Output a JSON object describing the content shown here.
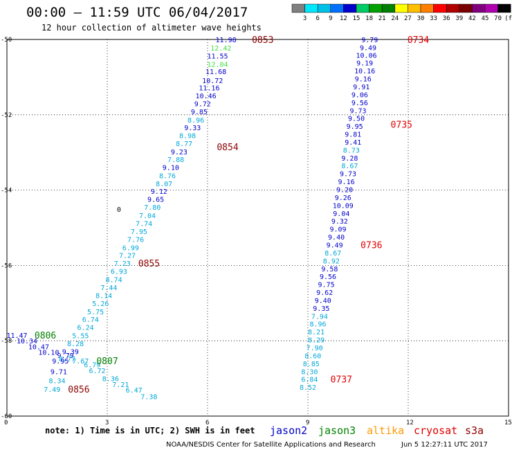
{
  "chart_data": {
    "type": "scatter",
    "title": "00:00 – 11:59 UTC 06/04/2017",
    "subtitle": "12 hour collection of altimeter wave heights",
    "xlim": [
      0,
      15
    ],
    "ylim": [
      -60,
      -50
    ],
    "x_ticks": [
      "0",
      "3",
      "6",
      "9",
      "12",
      "15"
    ],
    "y_ticks": [
      "-50",
      "-52",
      "-54",
      "-56",
      "-58",
      "-60"
    ],
    "grid": true,
    "colorbar": {
      "labels": [
        "3",
        "6",
        "9",
        "12",
        "15",
        "18",
        "21",
        "24",
        "27",
        "30",
        "33",
        "36",
        "39",
        "42",
        "45",
        "70"
      ],
      "unit": "(ft)",
      "colors": [
        "#808080",
        "#00e8ff",
        "#00c0e8",
        "#0070ff",
        "#0000cc",
        "#00cc66",
        "#00a000",
        "#008000",
        "#ffff00",
        "#ffc000",
        "#ff8000",
        "#ff0000",
        "#b00000",
        "#7a0000",
        "#800080",
        "#b000b0",
        "#000000"
      ]
    },
    "value_colors": {
      "ge9": "#0000cc",
      "lt9": "#00a8d8",
      "ge12": "#44dd44",
      "special": "#0000cc"
    },
    "series": [
      {
        "points": [
          {
            "x": 6.55,
            "y": -50.0,
            "v": "11.98",
            "c": "#0000cc"
          },
          {
            "x": 6.4,
            "y": -50.22,
            "v": "12.42",
            "c": "#44dd44"
          },
          {
            "x": 6.3,
            "y": -50.43,
            "v": "11.55",
            "c": "#0000cc"
          },
          {
            "x": 6.3,
            "y": -50.65,
            "v": "12.04",
            "c": "#44dd44"
          },
          {
            "x": 6.25,
            "y": -50.85,
            "v": "11.68",
            "c": "#0000cc"
          },
          {
            "x": 6.15,
            "y": -51.08,
            "v": "10.72",
            "c": "#0000cc"
          },
          {
            "x": 6.05,
            "y": -51.28,
            "v": "11.16",
            "c": "#0000cc"
          },
          {
            "x": 5.95,
            "y": -51.49,
            "v": "10.46",
            "c": "#0000cc"
          },
          {
            "x": 5.85,
            "y": -51.7,
            "v": "9.72",
            "c": "#0000cc"
          },
          {
            "x": 5.75,
            "y": -51.91,
            "v": "9.85",
            "c": "#0000cc"
          },
          {
            "x": 5.65,
            "y": -52.13,
            "v": "8.96",
            "c": "#00a8d8"
          },
          {
            "x": 5.55,
            "y": -52.33,
            "v": "9.33",
            "c": "#0000cc"
          },
          {
            "x": 5.4,
            "y": -52.55,
            "v": "8.98",
            "c": "#00a8d8"
          },
          {
            "x": 5.3,
            "y": -52.76,
            "v": "8.77",
            "c": "#00a8d8"
          },
          {
            "x": 5.15,
            "y": -52.98,
            "v": "9.23",
            "c": "#0000cc"
          },
          {
            "x": 5.05,
            "y": -53.18,
            "v": "7.88",
            "c": "#00a8d8"
          },
          {
            "x": 4.9,
            "y": -53.39,
            "v": "9.10",
            "c": "#0000cc"
          },
          {
            "x": 4.8,
            "y": -53.61,
            "v": "8.76",
            "c": "#00a8d8"
          },
          {
            "x": 4.7,
            "y": -53.82,
            "v": "8.07",
            "c": "#00a8d8"
          },
          {
            "x": 4.55,
            "y": -54.03,
            "v": "9.12",
            "c": "#0000cc"
          },
          {
            "x": 4.45,
            "y": -54.24,
            "v": "9.65",
            "c": "#0000cc"
          },
          {
            "x": 4.35,
            "y": -54.45,
            "v": "7.80",
            "c": "#00a8d8"
          },
          {
            "x": 4.2,
            "y": -54.67,
            "v": "7.04",
            "c": "#00a8d8"
          },
          {
            "x": 4.1,
            "y": -54.88,
            "v": "7.74",
            "c": "#00a8d8"
          },
          {
            "x": 3.95,
            "y": -55.09,
            "v": "7.95",
            "c": "#00a8d8"
          },
          {
            "x": 3.85,
            "y": -55.3,
            "v": "7.76",
            "c": "#00a8d8"
          },
          {
            "x": 3.7,
            "y": -55.52,
            "v": "6.99",
            "c": "#00a8d8"
          },
          {
            "x": 3.6,
            "y": -55.73,
            "v": "7.27",
            "c": "#00a8d8"
          },
          {
            "x": 3.45,
            "y": -55.94,
            "v": "7.23",
            "c": "#00a8d8"
          },
          {
            "x": 3.35,
            "y": -56.15,
            "v": "6.93",
            "c": "#00a8d8"
          },
          {
            "x": 3.2,
            "y": -56.37,
            "v": "8.74",
            "c": "#00a8d8"
          },
          {
            "x": 3.05,
            "y": -56.58,
            "v": "7.44",
            "c": "#00a8d8"
          },
          {
            "x": 2.9,
            "y": -56.79,
            "v": "8.14",
            "c": "#00a8d8"
          },
          {
            "x": 2.8,
            "y": -57.0,
            "v": "5.26",
            "c": "#00a8d8"
          },
          {
            "x": 2.65,
            "y": -57.22,
            "v": "5.75",
            "c": "#00a8d8"
          },
          {
            "x": 2.5,
            "y": -57.43,
            "v": "6.74",
            "c": "#00a8d8"
          },
          {
            "x": 2.35,
            "y": -57.64,
            "v": "6.24",
            "c": "#00a8d8"
          },
          {
            "x": 2.2,
            "y": -57.86,
            "v": "5.55",
            "c": "#00a8d8"
          },
          {
            "x": 2.05,
            "y": -58.07,
            "v": "8.28",
            "c": "#00a8d8"
          },
          {
            "x": 1.9,
            "y": -58.28,
            "v": "9.39",
            "c": "#0000cc"
          },
          {
            "x": 1.75,
            "y": -58.38,
            "v": "9.79",
            "c": "#0000cc"
          },
          {
            "x": 1.8,
            "y": -58.47,
            "v": "8.77",
            "c": "#00a8d8"
          },
          {
            "x": 1.6,
            "y": -58.53,
            "v": "9.95",
            "c": "#0000cc"
          },
          {
            "x": 2.2,
            "y": -58.53,
            "v": "7.67",
            "c": "#00a8d8"
          },
          {
            "x": 2.55,
            "y": -58.63,
            "v": "6.79",
            "c": "#00a8d8"
          },
          {
            "x": 2.7,
            "y": -58.79,
            "v": "6.72",
            "c": "#00a8d8"
          },
          {
            "x": 1.55,
            "y": -58.81,
            "v": "9.71",
            "c": "#0000cc"
          },
          {
            "x": 3.1,
            "y": -59.0,
            "v": "8.36",
            "c": "#00a8d8"
          },
          {
            "x": 1.5,
            "y": -59.05,
            "v": "8.34",
            "c": "#00a8d8"
          },
          {
            "x": 3.4,
            "y": -59.15,
            "v": "7.21",
            "c": "#00a8d8"
          },
          {
            "x": 1.35,
            "y": -59.28,
            "v": "7.49",
            "c": "#00a8d8"
          },
          {
            "x": 3.8,
            "y": -59.3,
            "v": "6.47",
            "c": "#00a8d8"
          },
          {
            "x": 4.25,
            "y": -59.48,
            "v": "7.38",
            "c": "#00a8d8"
          }
        ]
      },
      {
        "points": [
          {
            "x": 0.3,
            "y": -57.85,
            "v": "11.47",
            "c": "#0000cc"
          },
          {
            "x": 0.6,
            "y": -58.0,
            "v": "10.34",
            "c": "#0000cc"
          },
          {
            "x": 0.95,
            "y": -58.15,
            "v": "10.47",
            "c": "#0000cc"
          },
          {
            "x": 1.25,
            "y": -58.3,
            "v": "10.10",
            "c": "#0000cc"
          }
        ]
      },
      {
        "points": [
          {
            "x": 10.85,
            "y": -50.0,
            "v": "9.79",
            "c": "#0000cc"
          },
          {
            "x": 10.8,
            "y": -50.21,
            "v": "9.49",
            "c": "#0000cc"
          },
          {
            "x": 10.75,
            "y": -50.41,
            "v": "10.06",
            "c": "#0000cc"
          },
          {
            "x": 10.7,
            "y": -50.62,
            "v": "9.19",
            "c": "#0000cc"
          },
          {
            "x": 10.7,
            "y": -50.83,
            "v": "10.16",
            "c": "#0000cc"
          },
          {
            "x": 10.65,
            "y": -51.04,
            "v": "9.16",
            "c": "#0000cc"
          },
          {
            "x": 10.6,
            "y": -51.25,
            "v": "9.91",
            "c": "#0000cc"
          },
          {
            "x": 10.55,
            "y": -51.46,
            "v": "9.06",
            "c": "#0000cc"
          },
          {
            "x": 10.55,
            "y": -51.67,
            "v": "9.56",
            "c": "#0000cc"
          },
          {
            "x": 10.5,
            "y": -51.88,
            "v": "9.73",
            "c": "#0000cc"
          },
          {
            "x": 10.45,
            "y": -52.09,
            "v": "9.50",
            "c": "#0000cc"
          },
          {
            "x": 10.4,
            "y": -52.3,
            "v": "9.95",
            "c": "#0000cc"
          },
          {
            "x": 10.35,
            "y": -52.51,
            "v": "9.81",
            "c": "#0000cc"
          },
          {
            "x": 10.35,
            "y": -52.72,
            "v": "9.41",
            "c": "#0000cc"
          },
          {
            "x": 10.3,
            "y": -52.93,
            "v": "8.73",
            "c": "#00a8d8"
          },
          {
            "x": 10.25,
            "y": -53.14,
            "v": "9.28",
            "c": "#0000cc"
          },
          {
            "x": 10.25,
            "y": -53.35,
            "v": "8.67",
            "c": "#00a8d8"
          },
          {
            "x": 10.2,
            "y": -53.56,
            "v": "9.73",
            "c": "#0000cc"
          },
          {
            "x": 10.15,
            "y": -53.77,
            "v": "9.16",
            "c": "#0000cc"
          },
          {
            "x": 10.1,
            "y": -53.98,
            "v": "9.20",
            "c": "#0000cc"
          },
          {
            "x": 10.05,
            "y": -54.19,
            "v": "9.26",
            "c": "#0000cc"
          },
          {
            "x": 10.05,
            "y": -54.4,
            "v": "10.09",
            "c": "#0000cc"
          },
          {
            "x": 10.0,
            "y": -54.61,
            "v": "9.04",
            "c": "#0000cc"
          },
          {
            "x": 9.95,
            "y": -54.82,
            "v": "9.32",
            "c": "#0000cc"
          },
          {
            "x": 9.9,
            "y": -55.03,
            "v": "9.09",
            "c": "#0000cc"
          },
          {
            "x": 9.85,
            "y": -55.24,
            "v": "9.40",
            "c": "#0000cc"
          },
          {
            "x": 9.8,
            "y": -55.45,
            "v": "9.49",
            "c": "#0000cc"
          },
          {
            "x": 9.75,
            "y": -55.66,
            "v": "8.67",
            "c": "#00a8d8"
          },
          {
            "x": 9.7,
            "y": -55.87,
            "v": "8.92",
            "c": "#00a8d8"
          },
          {
            "x": 9.65,
            "y": -56.08,
            "v": "9.58",
            "c": "#0000cc"
          },
          {
            "x": 9.6,
            "y": -56.29,
            "v": "9.56",
            "c": "#0000cc"
          },
          {
            "x": 9.55,
            "y": -56.5,
            "v": "9.75",
            "c": "#0000cc"
          },
          {
            "x": 9.5,
            "y": -56.71,
            "v": "9.62",
            "c": "#0000cc"
          },
          {
            "x": 9.45,
            "y": -56.92,
            "v": "9.40",
            "c": "#0000cc"
          },
          {
            "x": 9.4,
            "y": -57.13,
            "v": "9.35",
            "c": "#0000cc"
          },
          {
            "x": 9.35,
            "y": -57.34,
            "v": "7.94",
            "c": "#00a8d8"
          },
          {
            "x": 9.3,
            "y": -57.55,
            "v": "8.96",
            "c": "#00a8d8"
          },
          {
            "x": 9.25,
            "y": -57.76,
            "v": "8.21",
            "c": "#00a8d8"
          },
          {
            "x": 9.25,
            "y": -57.97,
            "v": "8.29",
            "c": "#00a8d8"
          },
          {
            "x": 9.2,
            "y": -58.18,
            "v": "7.90",
            "c": "#00a8d8"
          },
          {
            "x": 9.15,
            "y": -58.39,
            "v": "8.60",
            "c": "#00a8d8"
          },
          {
            "x": 9.1,
            "y": -58.6,
            "v": "8.85",
            "c": "#00a8d8"
          },
          {
            "x": 9.05,
            "y": -58.81,
            "v": "8.30",
            "c": "#00a8d8"
          },
          {
            "x": 9.05,
            "y": -59.02,
            "v": "6.84",
            "c": "#00a8d8"
          },
          {
            "x": 9.0,
            "y": -59.23,
            "v": "8.52",
            "c": "#00a8d8"
          }
        ]
      }
    ],
    "time_labels": [
      {
        "x": 7.65,
        "y": -50.0,
        "t": "0853",
        "c": "#8b0000"
      },
      {
        "x": 6.6,
        "y": -52.85,
        "t": "0854",
        "c": "#8b0000"
      },
      {
        "x": 4.25,
        "y": -55.94,
        "t": "0855",
        "c": "#8b0000"
      },
      {
        "x": 2.15,
        "y": -59.28,
        "t": "0856",
        "c": "#8b0000"
      },
      {
        "x": 1.15,
        "y": -57.85,
        "t": "0806",
        "c": "#008000"
      },
      {
        "x": 3.0,
        "y": -58.53,
        "t": "0807",
        "c": "#008000"
      },
      {
        "x": 12.3,
        "y": -50.0,
        "t": "0734",
        "c": "#e00000"
      },
      {
        "x": 11.8,
        "y": -52.25,
        "t": "0735",
        "c": "#e00000"
      },
      {
        "x": 10.9,
        "y": -55.45,
        "t": "0736",
        "c": "#e00000"
      },
      {
        "x": 10.0,
        "y": -59.02,
        "t": "0737",
        "c": "#e00000"
      }
    ],
    "annotations": [
      {
        "x": 3.35,
        "y": -54.5,
        "t": "0",
        "c": "#000000"
      }
    ],
    "legend": [
      "jason2",
      "jason3",
      "altika",
      "cryosat",
      "s3a"
    ],
    "legend_colors": [
      "#0000cc",
      "#008000",
      "#ff9900",
      "#e00000",
      "#8b0000"
    ]
  },
  "note": "note: 1) Time is in UTC; 2) SWH is in feet",
  "credit": "NOAA/NESDIS Center for Satellite Applications and Research",
  "timestamp": "Jun  5 12:27:11 UTC 2017"
}
